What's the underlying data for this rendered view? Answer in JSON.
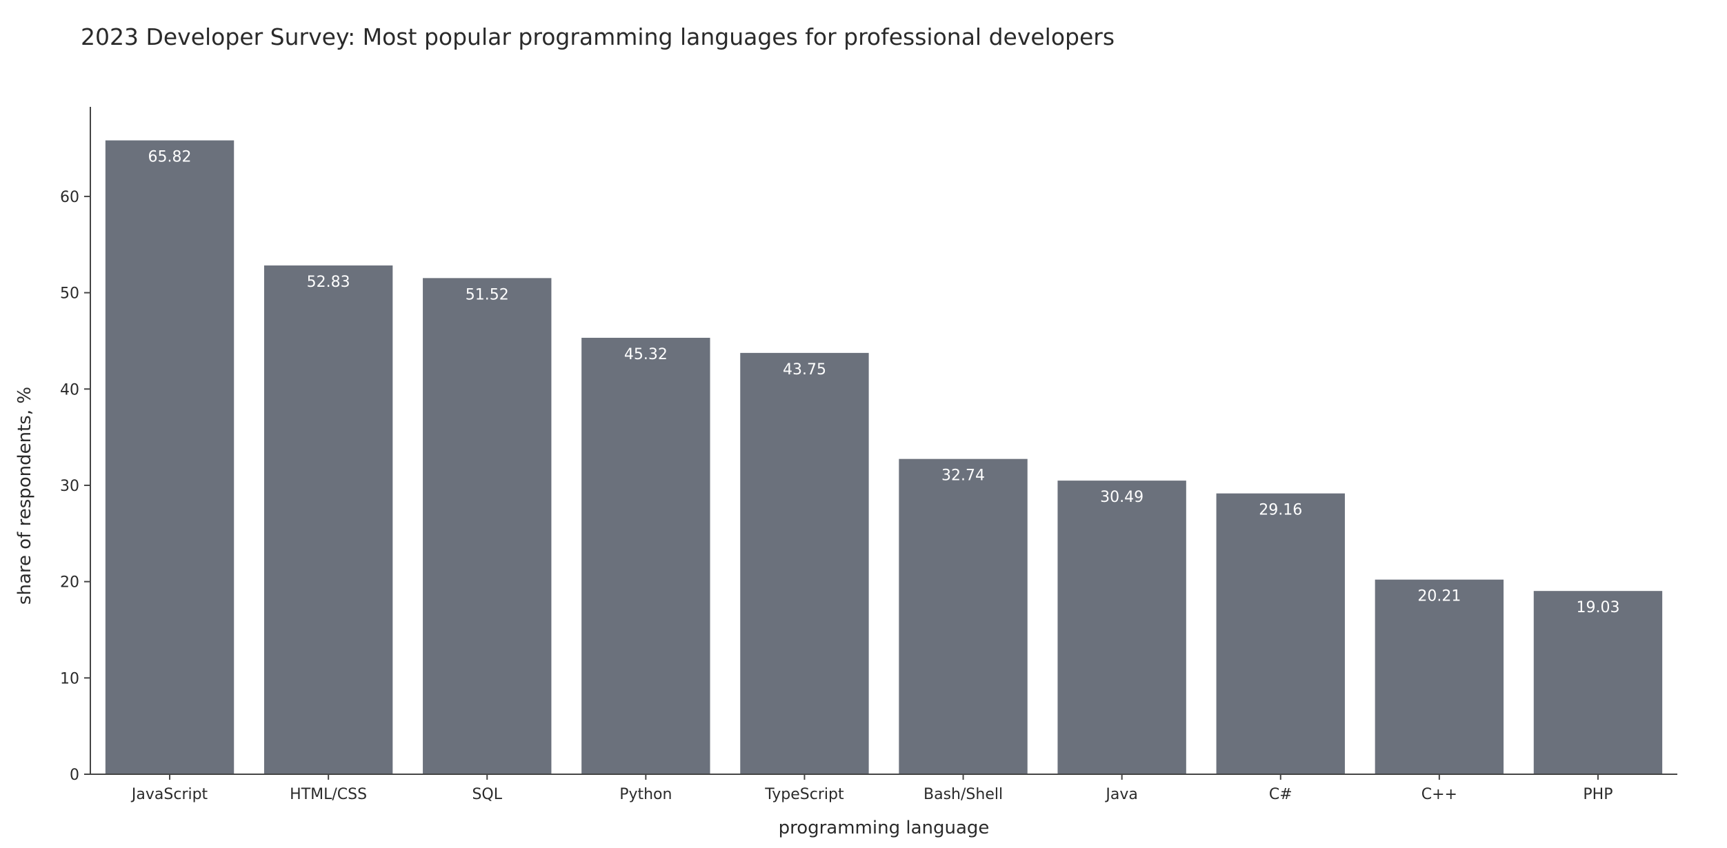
{
  "chart_data": {
    "type": "bar",
    "title": "2023 Developer Survey: Most popular programming languages for professional developers",
    "xlabel": "programming language",
    "ylabel": "share of respondents, %",
    "categories": [
      "JavaScript",
      "HTML/CSS",
      "SQL",
      "Python",
      "TypeScript",
      "Bash/Shell",
      "Java",
      "C#",
      "C++",
      "PHP"
    ],
    "values": [
      65.82,
      52.83,
      51.52,
      45.32,
      43.75,
      32.74,
      30.49,
      29.16,
      20.21,
      19.03
    ],
    "value_labels": [
      "65.82",
      "52.83",
      "51.52",
      "45.32",
      "43.75",
      "32.74",
      "30.49",
      "29.16",
      "20.21",
      "19.03"
    ],
    "yticks": [
      0,
      10,
      20,
      30,
      40,
      50,
      60
    ],
    "ylim": [
      0,
      69.3
    ],
    "grid": false,
    "legend": "none",
    "bar_color": "#6b717c",
    "axis_color": "#444444"
  }
}
